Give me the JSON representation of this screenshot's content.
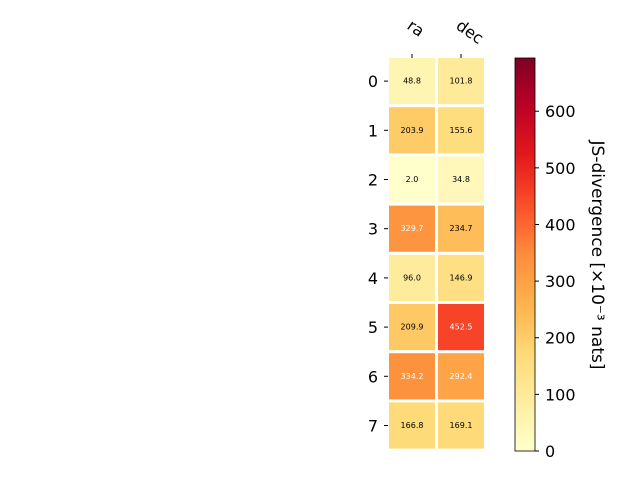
{
  "chart_data": {
    "type": "heatmap",
    "columns": [
      "ra",
      "dec"
    ],
    "rows": [
      "0",
      "1",
      "2",
      "3",
      "4",
      "5",
      "6",
      "7"
    ],
    "values": [
      [
        48.8,
        101.8
      ],
      [
        203.9,
        155.6
      ],
      [
        2.0,
        34.8
      ],
      [
        329.7,
        234.7
      ],
      [
        96.0,
        146.9
      ],
      [
        209.9,
        452.5
      ],
      [
        334.2,
        292.4
      ],
      [
        166.8,
        169.1
      ]
    ],
    "colorbar": {
      "label": "JS-divergence [×10⁻³ nats]",
      "range": [
        0,
        694
      ],
      "ticks": [
        0,
        100,
        200,
        300,
        400,
        500,
        600
      ],
      "colormap": "YlOrRd"
    },
    "cell_label_format": "one-decimal",
    "grid": false
  }
}
